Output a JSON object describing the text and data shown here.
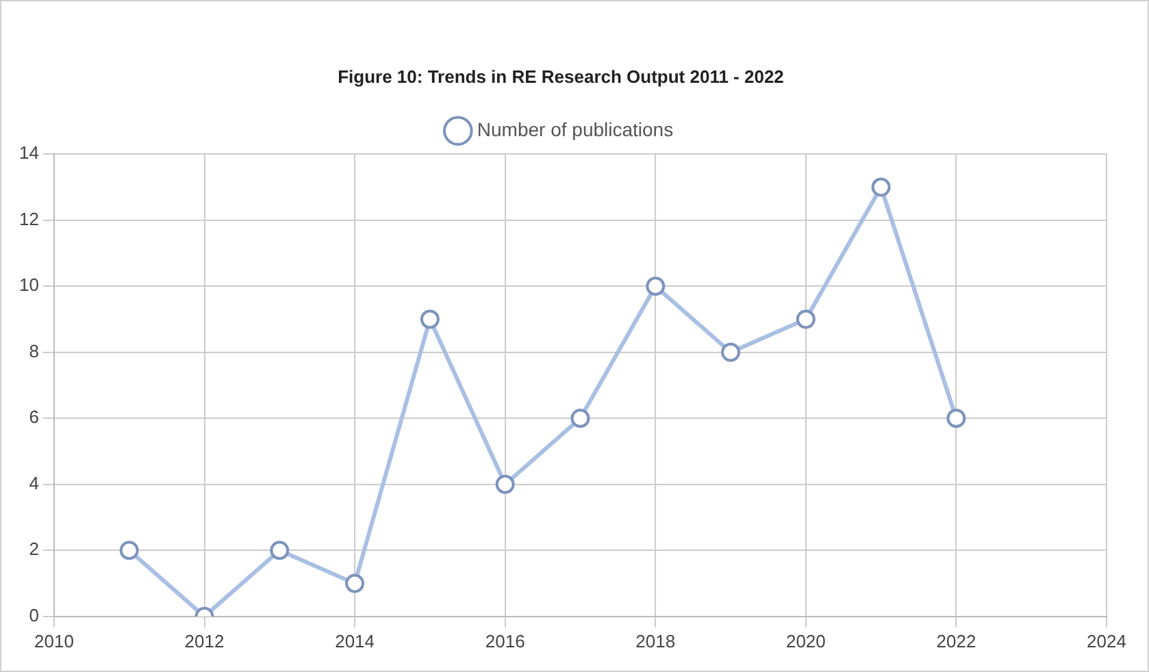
{
  "chart_data": {
    "type": "line",
    "title": "Figure 10: Trends in RE Research Output 2011 - 2022",
    "x": [
      2011,
      2012,
      2013,
      2014,
      2015,
      2016,
      2017,
      2018,
      2019,
      2020,
      2021,
      2022
    ],
    "series": [
      {
        "name": "Number of publications",
        "color": "#a9bfe3",
        "values": [
          2,
          0,
          2,
          1,
          9,
          4,
          6,
          10,
          8,
          9,
          13,
          6
        ]
      }
    ],
    "xlim": [
      2010,
      2024
    ],
    "xticks": [
      2010,
      2012,
      2014,
      2016,
      2018,
      2020,
      2022,
      2024
    ],
    "ylim": [
      0,
      14
    ],
    "yticks": [
      0,
      2,
      4,
      6,
      8,
      10,
      12,
      14
    ],
    "grid": true,
    "legend": "top",
    "marker": "circle",
    "line_style": "solid"
  }
}
